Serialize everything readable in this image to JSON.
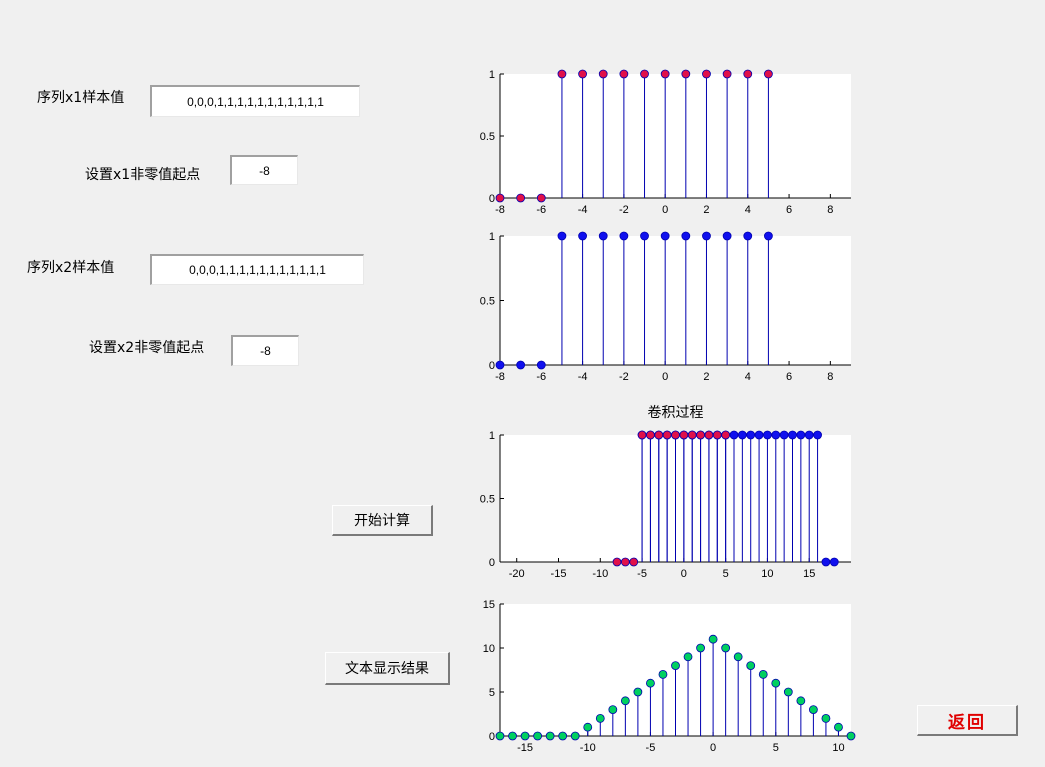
{
  "form": {
    "x1_label": "序列x1样本值",
    "x1_values": "0,0,0,1,1,1,1,1,1,1,1,1,1,1",
    "x1_start_label": "设置x1非零值起点",
    "x1_start": "-8",
    "x2_label": "序列x2样本值",
    "x2_values": "0,0,0,1,1,1,1,1,1,1,1,1,1,1",
    "x2_start_label": "设置x2非零值起点",
    "x2_start": "-8"
  },
  "buttons": {
    "compute": "开始计算",
    "show_text": "文本显示结果",
    "back": "返回"
  },
  "colors": {
    "stem": "#0000b0",
    "red_marker": "#e0104a",
    "blue_marker": "#1010ee",
    "green_marker": "#00d060",
    "plot_bg": "#ffffff"
  },
  "chart_data": [
    {
      "type": "stem",
      "title": "",
      "xlim": [
        -8,
        9
      ],
      "ylim": [
        0,
        1
      ],
      "xticks": [
        -8,
        -6,
        -4,
        -2,
        0,
        2,
        4,
        6,
        8
      ],
      "yticks": [
        0,
        0.5,
        1
      ],
      "ytick_labels": [
        "0",
        "0.5",
        "1"
      ],
      "series": [
        {
          "marker": "red",
          "x": [
            -8,
            -7,
            -6,
            -5,
            -4,
            -3,
            -2,
            -1,
            0,
            1,
            2,
            3,
            4,
            5
          ],
          "y": [
            0,
            0,
            0,
            1,
            1,
            1,
            1,
            1,
            1,
            1,
            1,
            1,
            1,
            1
          ]
        }
      ]
    },
    {
      "type": "stem",
      "title": "",
      "xlim": [
        -8,
        9
      ],
      "ylim": [
        0,
        1
      ],
      "xticks": [
        -8,
        -6,
        -4,
        -2,
        0,
        2,
        4,
        6,
        8
      ],
      "yticks": [
        0,
        0.5,
        1
      ],
      "ytick_labels": [
        "0",
        "0.5",
        "1"
      ],
      "series": [
        {
          "marker": "blue",
          "x": [
            -8,
            -7,
            -6,
            -5,
            -4,
            -3,
            -2,
            -1,
            0,
            1,
            2,
            3,
            4,
            5
          ],
          "y": [
            0,
            0,
            0,
            1,
            1,
            1,
            1,
            1,
            1,
            1,
            1,
            1,
            1,
            1
          ]
        }
      ]
    },
    {
      "type": "stem",
      "title": "卷积过程",
      "xlim": [
        -22,
        20
      ],
      "ylim": [
        0,
        1
      ],
      "xticks": [
        -20,
        -15,
        -10,
        -5,
        0,
        5,
        10,
        15
      ],
      "yticks": [
        0,
        0.5,
        1
      ],
      "ytick_labels": [
        "0",
        "0.5",
        "1"
      ],
      "series": [
        {
          "marker": "blue",
          "x": [
            -5,
            -4,
            -3,
            -2,
            -1,
            0,
            1,
            2,
            3,
            4,
            5,
            6,
            7,
            8,
            9,
            10,
            11,
            12,
            13,
            14,
            15,
            16,
            17,
            18
          ],
          "y": [
            1,
            1,
            1,
            1,
            1,
            1,
            1,
            1,
            1,
            1,
            1,
            1,
            1,
            1,
            1,
            1,
            1,
            1,
            1,
            1,
            1,
            1,
            0,
            0
          ]
        },
        {
          "marker": "red",
          "x": [
            -8,
            -7,
            -6,
            -5,
            -4,
            -3,
            -2,
            -1,
            0,
            1,
            2,
            3,
            4,
            5
          ],
          "y": [
            0,
            0,
            0,
            1,
            1,
            1,
            1,
            1,
            1,
            1,
            1,
            1,
            1,
            1
          ]
        }
      ]
    },
    {
      "type": "stem",
      "title": "",
      "xlim": [
        -17,
        11
      ],
      "ylim": [
        0,
        15
      ],
      "xticks": [
        -15,
        -10,
        -5,
        0,
        5,
        10
      ],
      "yticks": [
        0,
        5,
        10,
        15
      ],
      "ytick_labels": [
        "0",
        "5",
        "10",
        "15"
      ],
      "series": [
        {
          "marker": "green",
          "x": [
            -17,
            -16,
            -15,
            -14,
            -13,
            -12,
            -11,
            -10,
            -9,
            -8,
            -7,
            -6,
            -5,
            -4,
            -3,
            -2,
            -1,
            0,
            1,
            2,
            3,
            4,
            5,
            6,
            7,
            8,
            9,
            10,
            11
          ],
          "y": [
            0,
            0,
            0,
            0,
            0,
            0,
            0,
            1,
            2,
            3,
            4,
            5,
            6,
            7,
            8,
            9,
            10,
            11,
            10,
            9,
            8,
            7,
            6,
            5,
            4,
            3,
            2,
            1,
            0
          ]
        }
      ]
    }
  ]
}
